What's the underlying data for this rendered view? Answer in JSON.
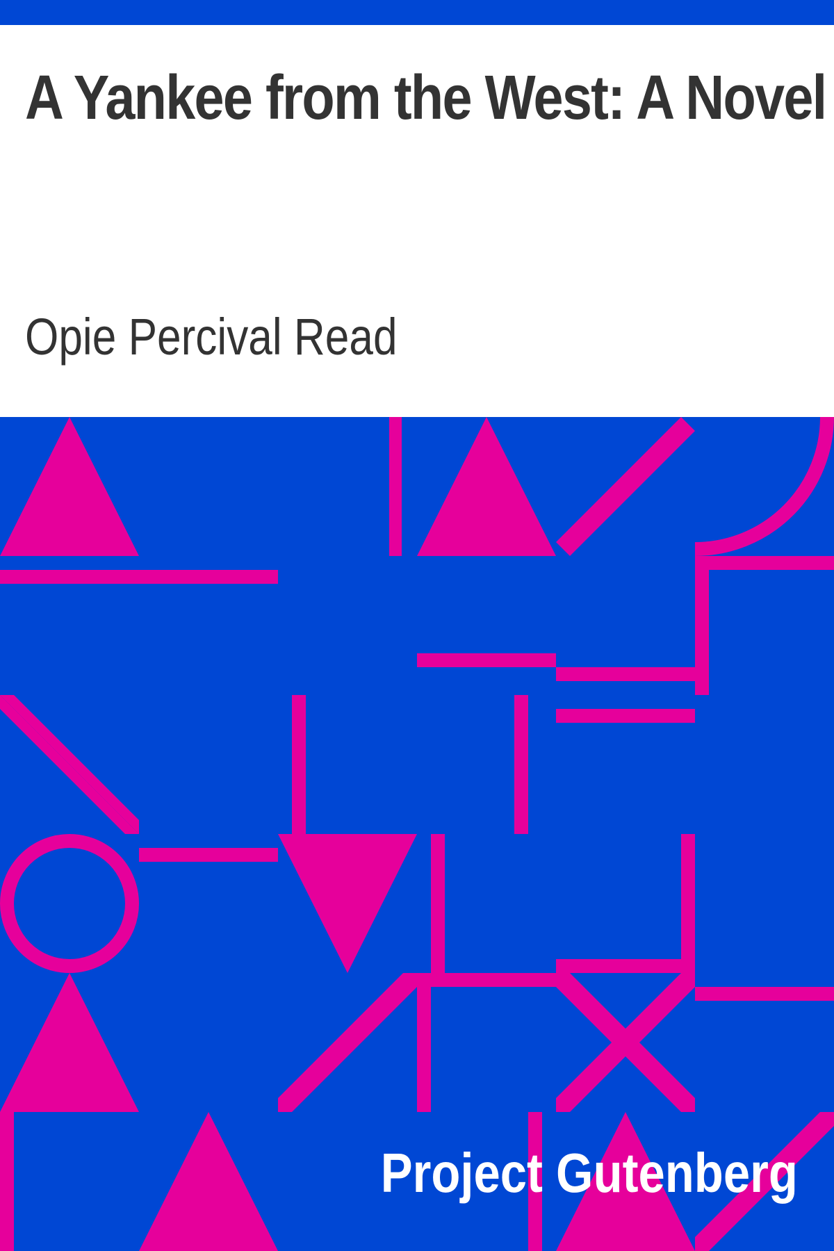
{
  "cover": {
    "title": "A Yankee from the West: A Novel",
    "author": "Opie Percival Read",
    "publisher": "Project Gutenberg"
  },
  "colors": {
    "background_blue": "#0047d4",
    "shape_magenta": "#e6009b",
    "text_dark": "#333333",
    "paper": "#ffffff"
  },
  "artwork": {
    "pattern_name": "geometric-tile-pattern"
  }
}
